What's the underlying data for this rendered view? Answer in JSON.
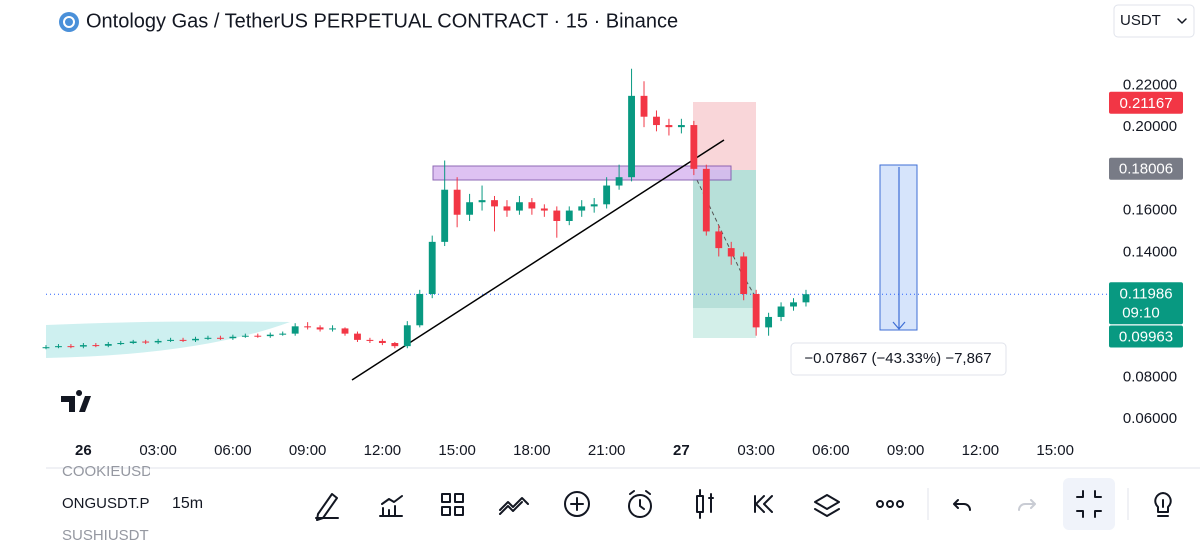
{
  "header": {
    "title": "Ontology Gas / TetherUS PERPETUAL CONTRACT · 15 · Binance",
    "currency": "USDT"
  },
  "chart_data": {
    "type": "candlestick",
    "x": [
      -1.5,
      -1,
      -0.5,
      0,
      0.5,
      1,
      1.5,
      2,
      2.5,
      3,
      3.5,
      4,
      4.5,
      5,
      5.5,
      6,
      6.5,
      7,
      7.5,
      8,
      8.5,
      9,
      9.5,
      10,
      10.5,
      11,
      11.5,
      12,
      12.5,
      13,
      13.5,
      14,
      14.5,
      15,
      15.5,
      16,
      16.5,
      17,
      17.5,
      18,
      18.5,
      19,
      19.5,
      20,
      20.5,
      21,
      21.5,
      22,
      22.5,
      23,
      23.5,
      24,
      24.5,
      25,
      25.5,
      26,
      26.5,
      27,
      27.5,
      28,
      28.5,
      29
    ],
    "open": [
      0.094,
      0.0945,
      0.095,
      0.0948,
      0.0955,
      0.0952,
      0.096,
      0.0965,
      0.0972,
      0.0968,
      0.0975,
      0.098,
      0.0978,
      0.0985,
      0.099,
      0.0988,
      0.0995,
      0.1,
      0.0998,
      0.1005,
      0.101,
      0.1045,
      0.104,
      0.103,
      0.1035,
      0.101,
      0.098,
      0.0975,
      0.0965,
      0.095,
      0.105,
      0.12,
      0.145,
      0.17,
      0.158,
      0.164,
      0.165,
      0.162,
      0.16,
      0.164,
      0.161,
      0.16,
      0.155,
      0.16,
      0.162,
      0.163,
      0.172,
      0.176,
      0.215,
      0.205,
      0.201,
      0.2,
      0.201,
      0.18,
      0.15,
      0.142,
      0.138,
      0.12,
      0.104,
      0.109,
      0.114,
      0.116
    ],
    "high": [
      0.0955,
      0.096,
      0.096,
      0.0965,
      0.0965,
      0.097,
      0.0975,
      0.098,
      0.098,
      0.0985,
      0.099,
      0.099,
      0.0995,
      0.1,
      0.1,
      0.1005,
      0.101,
      0.101,
      0.1015,
      0.102,
      0.106,
      0.1065,
      0.105,
      0.105,
      0.104,
      0.102,
      0.099,
      0.0985,
      0.097,
      0.107,
      0.122,
      0.148,
      0.184,
      0.176,
      0.168,
      0.172,
      0.167,
      0.165,
      0.167,
      0.166,
      0.163,
      0.162,
      0.162,
      0.165,
      0.166,
      0.176,
      0.182,
      0.228,
      0.222,
      0.208,
      0.204,
      0.204,
      0.203,
      0.182,
      0.153,
      0.145,
      0.14,
      0.122,
      0.111,
      0.116,
      0.118,
      0.122
    ],
    "low": [
      0.0935,
      0.094,
      0.094,
      0.094,
      0.0945,
      0.0945,
      0.0955,
      0.096,
      0.096,
      0.096,
      0.097,
      0.097,
      0.097,
      0.098,
      0.098,
      0.098,
      0.099,
      0.099,
      0.099,
      0.1,
      0.1,
      0.103,
      0.102,
      0.102,
      0.1,
      0.097,
      0.0965,
      0.0955,
      0.094,
      0.094,
      0.104,
      0.118,
      0.143,
      0.152,
      0.155,
      0.16,
      0.15,
      0.157,
      0.158,
      0.158,
      0.157,
      0.147,
      0.153,
      0.157,
      0.159,
      0.161,
      0.17,
      0.174,
      0.2,
      0.198,
      0.196,
      0.197,
      0.177,
      0.148,
      0.138,
      0.134,
      0.117,
      0.1,
      0.1,
      0.107,
      0.112,
      0.114
    ],
    "close": [
      0.0945,
      0.095,
      0.0948,
      0.0955,
      0.0952,
      0.096,
      0.0965,
      0.0972,
      0.0968,
      0.0975,
      0.098,
      0.0978,
      0.0985,
      0.099,
      0.0988,
      0.0995,
      0.1,
      0.0998,
      0.1005,
      0.101,
      0.1045,
      0.104,
      0.103,
      0.1035,
      0.101,
      0.098,
      0.0975,
      0.0965,
      0.095,
      0.105,
      0.12,
      0.145,
      0.17,
      0.158,
      0.164,
      0.165,
      0.162,
      0.16,
      0.164,
      0.161,
      0.16,
      0.155,
      0.16,
      0.162,
      0.163,
      0.172,
      0.176,
      0.215,
      0.205,
      0.201,
      0.2,
      0.201,
      0.18,
      0.15,
      0.142,
      0.138,
      0.12,
      0.104,
      0.109,
      0.114,
      0.116,
      0.1199
    ],
    "up_color": "#089981",
    "down_color": "#f23645",
    "xlim": [
      -1.5,
      40.8
    ],
    "ylim": [
      0.05,
      0.26
    ],
    "xticks": [
      {
        "value": 0,
        "label": "26"
      },
      {
        "value": 3,
        "label": "03:00"
      },
      {
        "value": 6,
        "label": "06:00"
      },
      {
        "value": 9,
        "label": "09:00"
      },
      {
        "value": 12,
        "label": "12:00"
      },
      {
        "value": 15,
        "label": "15:00"
      },
      {
        "value": 18,
        "label": "18:00"
      },
      {
        "value": 21,
        "label": "21:00"
      },
      {
        "value": 24,
        "label": "27"
      },
      {
        "value": 27,
        "label": "03:00"
      },
      {
        "value": 30,
        "label": "06:00"
      },
      {
        "value": 33,
        "label": "09:00"
      },
      {
        "value": 36,
        "label": "12:00"
      },
      {
        "value": 39,
        "label": "15:00"
      }
    ],
    "yticks": [
      {
        "value": 0.22,
        "label": "0.22000"
      },
      {
        "value": 0.2,
        "label": "0.20000"
      },
      {
        "value": 0.16,
        "label": "0.16000"
      },
      {
        "value": 0.14,
        "label": "0.14000"
      },
      {
        "value": 0.08,
        "label": "0.08000"
      },
      {
        "value": 0.06,
        "label": "0.06000"
      }
    ],
    "last_price": 0.11986,
    "last_color": "#089981",
    "countdown": "09:10",
    "price_tags": [
      {
        "value": 0.21167,
        "color": "#f23645"
      },
      {
        "value": 0.18006,
        "color": "#787b86"
      },
      {
        "value": 0.09963,
        "color": "#089981"
      }
    ],
    "measure_label": "−0.07867 (−43.33%) −7,867"
  },
  "toolbar": {
    "symbols": [
      "COOKIEUSDT",
      "ONGUSDT.P",
      "SUSHIUSDT"
    ],
    "interval": "15m"
  }
}
